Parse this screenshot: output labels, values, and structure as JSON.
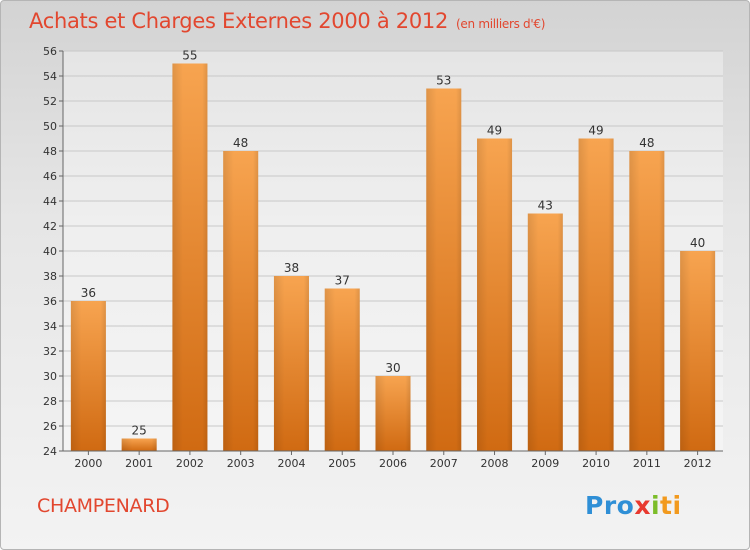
{
  "header": {
    "title": "Achats et Charges Externes 2000 à 2012",
    "unit": "(en milliers d'€)"
  },
  "footer": {
    "commune": "CHAMPENARD",
    "brand": {
      "p1": "Pro",
      "p2": "x",
      "p3": "i",
      "p4": "ti"
    }
  },
  "colors": {
    "title": "#e2472f",
    "bar_light": "#f7a450",
    "bar_dark": "#d06a12"
  },
  "chart_data": {
    "type": "bar",
    "categories": [
      "2000",
      "2001",
      "2002",
      "2003",
      "2004",
      "2005",
      "2006",
      "2007",
      "2008",
      "2009",
      "2010",
      "2011",
      "2012"
    ],
    "values": [
      36,
      25,
      55,
      48,
      38,
      37,
      30,
      53,
      49,
      43,
      49,
      48,
      40
    ],
    "ylim": [
      24,
      56
    ],
    "yticks": [
      24,
      26,
      28,
      30,
      32,
      34,
      36,
      38,
      40,
      42,
      44,
      46,
      48,
      50,
      52,
      54,
      56
    ],
    "grid": true,
    "data_labels": true
  }
}
